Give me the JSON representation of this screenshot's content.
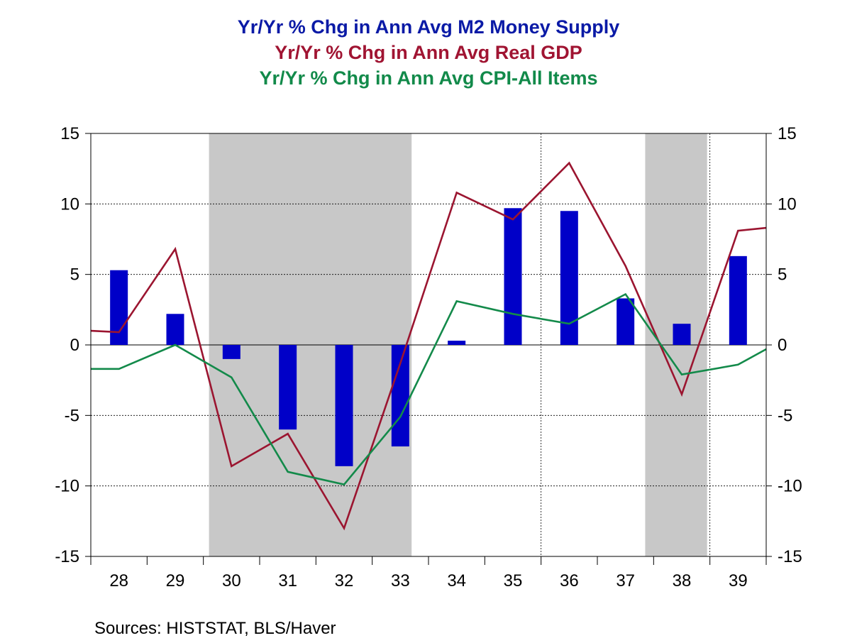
{
  "titles": {
    "m2": "Yr/Yr % Chg in Ann Avg M2 Money Supply",
    "gdp": "Yr/Yr % Chg in Ann Avg Real GDP",
    "cpi": "Yr/Yr % Chg in Ann Avg CPI-All Items"
  },
  "source": "Sources:  HISTSTAT, BLS/Haver",
  "colors": {
    "m2": "#0000c8",
    "gdp": "#9b1530",
    "cpi": "#138a4a",
    "recession": "#c8c8c8"
  },
  "chart_data": {
    "type": "bar",
    "categories": [
      "28",
      "29",
      "30",
      "31",
      "32",
      "33",
      "34",
      "35",
      "36",
      "37",
      "38",
      "39"
    ],
    "ylim": [
      -15,
      15
    ],
    "yticks": [
      -15,
      -10,
      -5,
      0,
      5,
      10,
      15
    ],
    "ytick_labels": [
      "-15",
      "-10",
      "-5",
      "0",
      "5",
      "10",
      "15"
    ],
    "grid": true,
    "recession_bands": [
      {
        "start": 29.6,
        "end": 33.2
      },
      {
        "start": 37.35,
        "end": 38.45
      }
    ],
    "series": [
      {
        "name": "Yr/Yr % Chg in Ann Avg M2 Money Supply",
        "type": "bar",
        "x": [
          28,
          29,
          30,
          31,
          32,
          33,
          34,
          35,
          36,
          37,
          38,
          39
        ],
        "values": [
          5.3,
          2.2,
          -1.0,
          -6.0,
          -8.6,
          -7.2,
          0.3,
          9.7,
          9.5,
          3.3,
          1.5,
          6.3
        ]
      },
      {
        "name": "Yr/Yr % Chg in Ann Avg Real GDP",
        "type": "line",
        "x": [
          27.5,
          28,
          29,
          30,
          31,
          32,
          33,
          34,
          35,
          36,
          37,
          38,
          39,
          39.5
        ],
        "values": [
          1.0,
          0.9,
          6.8,
          -8.6,
          -6.3,
          -13.0,
          -1.3,
          10.8,
          8.9,
          12.9,
          5.6,
          -3.5,
          8.1,
          8.3
        ]
      },
      {
        "name": "Yr/Yr % Chg in Ann Avg CPI-All Items",
        "type": "line",
        "x": [
          27.5,
          28,
          29,
          30,
          31,
          32,
          33,
          34,
          35,
          36,
          37,
          38,
          39,
          39.5
        ],
        "values": [
          -1.7,
          -1.7,
          0.0,
          -2.3,
          -9.0,
          -9.9,
          -5.1,
          3.1,
          2.2,
          1.5,
          3.6,
          -2.1,
          -1.4,
          -0.3
        ]
      }
    ]
  }
}
